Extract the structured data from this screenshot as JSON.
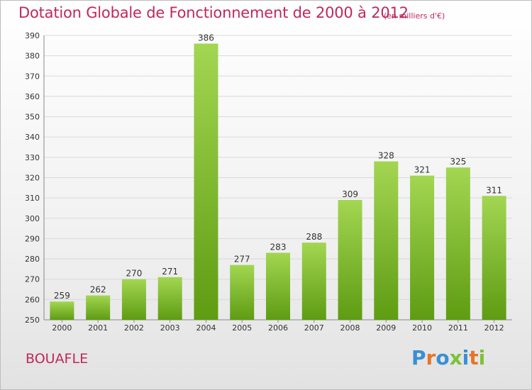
{
  "header": {
    "title": "Dotation Globale de Fonctionnement de 2000 à 2012",
    "subtitle": "(en milliers d'€)"
  },
  "footer": {
    "place": "BOUAFLE",
    "logo": "Proxiti"
  },
  "colors": {
    "title": "#c0285b",
    "bar_top": "#a3d652",
    "bar_bottom": "#5e9c12",
    "logo_letters": [
      "#3a8fd4",
      "#e8742a",
      "#3a8fd4",
      "#7cc13a",
      "#3a8fd4",
      "#e8742a",
      "#7cc13a"
    ]
  },
  "chart_data": {
    "type": "bar",
    "title": "Dotation Globale de Fonctionnement de 2000 à 2012",
    "subtitle": "(en milliers d'€)",
    "categories": [
      "2000",
      "2001",
      "2002",
      "2003",
      "2004",
      "2005",
      "2006",
      "2007",
      "2008",
      "2009",
      "2010",
      "2011",
      "2012"
    ],
    "values": [
      259,
      262,
      270,
      271,
      386,
      277,
      283,
      288,
      309,
      328,
      321,
      325,
      311
    ],
    "ylim": [
      250,
      390
    ],
    "yticks": [
      250,
      260,
      270,
      280,
      290,
      300,
      310,
      320,
      330,
      340,
      350,
      360,
      370,
      380,
      390
    ],
    "grid": true,
    "data_labels": true
  }
}
